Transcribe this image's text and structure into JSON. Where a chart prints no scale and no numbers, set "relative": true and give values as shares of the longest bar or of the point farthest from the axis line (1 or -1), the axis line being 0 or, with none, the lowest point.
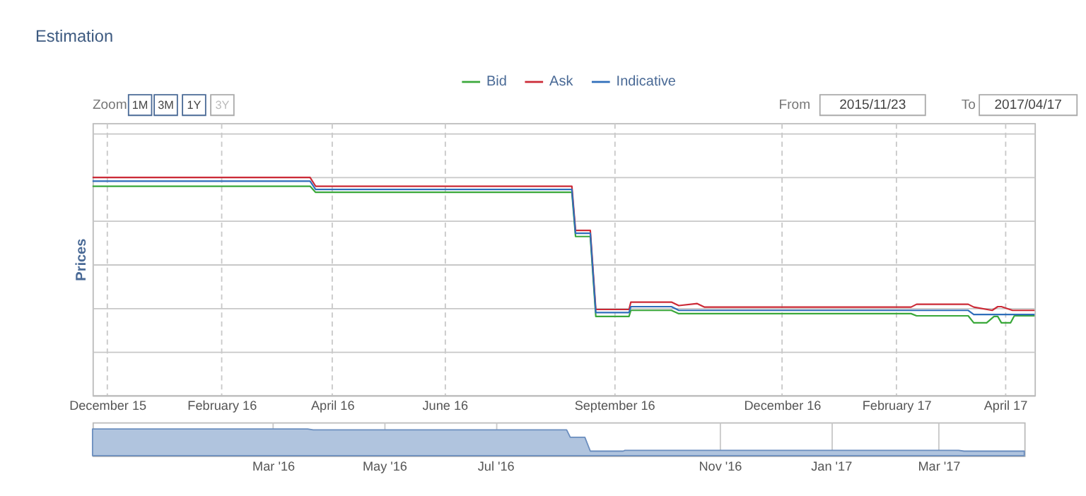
{
  "chart_data": [
    {
      "type": "line",
      "title": "Estimation",
      "ylabel": "Prices",
      "relative": true,
      "grid": true,
      "legend": "top",
      "marker": "none",
      "line_style": "solid",
      "annotations": [
        "Zoom",
        "1M",
        "3M",
        "1Y",
        "3Y",
        "From",
        "2015/11/23",
        "To",
        "2017/04/17"
      ],
      "xlim": [
        "2015-11-23",
        "2017-04-17"
      ],
      "xticks": [
        {
          "value": "2015-12-01",
          "label": "December 15"
        },
        {
          "value": "2016-02-01",
          "label": "February 16"
        },
        {
          "value": "2016-04-01",
          "label": "April 16"
        },
        {
          "value": "2016-06-01",
          "label": "June 16"
        },
        {
          "value": "2016-09-01",
          "label": "September 16"
        },
        {
          "value": "2016-12-01",
          "label": "December 16"
        },
        {
          "value": "2017-02-01",
          "label": "February 17"
        },
        {
          "value": "2017-04-01",
          "label": "April 17"
        }
      ],
      "series": [
        {
          "name": "Bid",
          "color": "#3aa83a",
          "x": [
            "2015-11-23",
            "2016-03-20",
            "2016-03-23",
            "2016-08-09",
            "2016-08-11",
            "2016-08-19",
            "2016-08-22",
            "2016-09-09",
            "2016-09-10",
            "2016-10-02",
            "2016-10-06",
            "2017-02-09",
            "2017-02-12",
            "2017-03-12",
            "2017-03-15",
            "2017-03-22",
            "2017-03-26",
            "2017-03-28",
            "2017-03-30",
            "2017-04-04",
            "2017-04-06",
            "2017-04-17"
          ],
          "values": [
            0.96,
            0.96,
            0.932,
            0.932,
            0.729,
            0.729,
            0.362,
            0.362,
            0.39,
            0.39,
            0.375,
            0.375,
            0.365,
            0.365,
            0.333,
            0.333,
            0.362,
            0.362,
            0.333,
            0.333,
            0.365,
            0.365
          ]
        },
        {
          "name": "Ask",
          "color": "#cc2a36",
          "x": [
            "2015-11-23",
            "2016-03-20",
            "2016-03-23",
            "2016-08-09",
            "2016-08-11",
            "2016-08-19",
            "2016-08-22",
            "2016-09-09",
            "2016-09-10",
            "2016-10-02",
            "2016-10-06",
            "2016-10-16",
            "2016-10-20",
            "2017-02-09",
            "2017-02-12",
            "2017-03-12",
            "2017-03-15",
            "2017-03-25",
            "2017-03-28",
            "2017-03-30",
            "2017-04-05",
            "2017-04-17"
          ],
          "values": [
            1.0,
            1.0,
            0.96,
            0.96,
            0.757,
            0.757,
            0.394,
            0.394,
            0.428,
            0.428,
            0.412,
            0.421,
            0.405,
            0.405,
            0.418,
            0.418,
            0.405,
            0.39,
            0.407,
            0.407,
            0.39,
            0.39
          ]
        },
        {
          "name": "Indicative",
          "color": "#2f6eba",
          "x": [
            "2015-11-23",
            "2016-03-20",
            "2016-03-23",
            "2016-08-09",
            "2016-08-11",
            "2016-08-19",
            "2016-08-22",
            "2016-09-09",
            "2016-09-10",
            "2016-10-02",
            "2016-10-06",
            "2017-03-12",
            "2017-03-15",
            "2017-04-17"
          ],
          "values": [
            0.983,
            0.983,
            0.945,
            0.945,
            0.744,
            0.744,
            0.38,
            0.38,
            0.407,
            0.407,
            0.39,
            0.39,
            0.371,
            0.371
          ]
        }
      ]
    },
    {
      "type": "area",
      "relative": true,
      "grid": "x",
      "xlim": [
        "2015-11-23",
        "2017-04-17"
      ],
      "xticks": [
        {
          "value": "2016-03-01",
          "label": "Mar '16"
        },
        {
          "value": "2016-05-01",
          "label": "May '16"
        },
        {
          "value": "2016-07-01",
          "label": "Jul '16"
        },
        {
          "value": "2016-11-01",
          "label": "Nov '16"
        },
        {
          "value": "2017-01-01",
          "label": "Jan '17"
        },
        {
          "value": "2017-03-01",
          "label": "Mar '17"
        }
      ],
      "series": [
        {
          "color": "#b0c4de",
          "x": [
            "2015-11-23",
            "2016-03-20",
            "2016-03-23",
            "2016-08-09",
            "2016-08-11",
            "2016-08-19",
            "2016-08-22",
            "2016-09-09",
            "2016-09-10",
            "2017-03-12",
            "2017-03-15",
            "2017-04-17"
          ],
          "values": [
            1.0,
            1.0,
            0.966,
            0.966,
            0.69,
            0.69,
            0.17,
            0.17,
            0.2,
            0.2,
            0.17,
            0.17
          ]
        }
      ]
    }
  ]
}
